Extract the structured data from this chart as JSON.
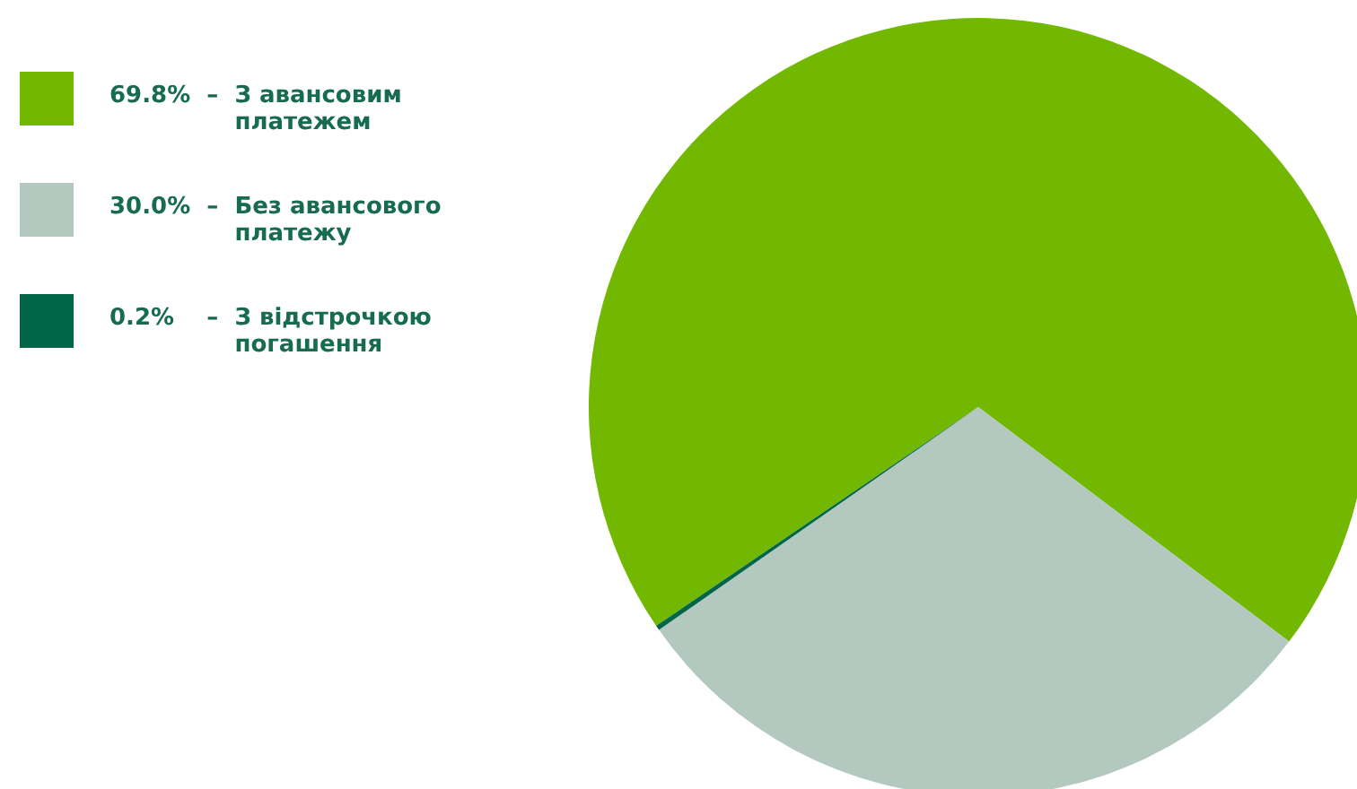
{
  "chart_data": {
    "type": "pie",
    "categories": [
      "З авансовим платежем",
      "Без авансового платежу",
      "З відстрочкою погашення"
    ],
    "values": [
      69.8,
      30.0,
      0.2
    ],
    "value_labels": [
      "69.8%  –",
      "30.0%  –",
      "0.2%    –"
    ],
    "colors": [
      "#72b800",
      "#b3c9c0",
      "#006647"
    ],
    "legend": "left"
  }
}
